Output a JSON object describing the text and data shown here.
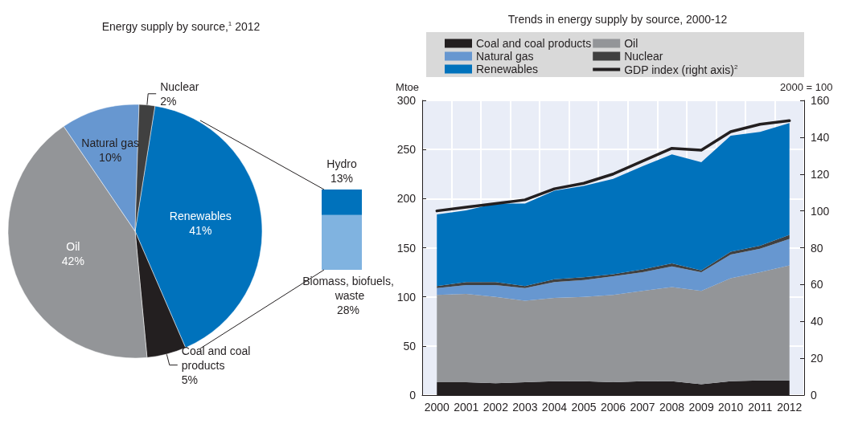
{
  "chart_data": [
    {
      "type": "pie",
      "title": "Energy supply by source,$^{1}$ 2012",
      "categories": [
        "Renewables",
        "Coal and coal products",
        "Oil",
        "Natural gas",
        "Nuclear"
      ],
      "values": [
        41,
        5,
        42,
        10,
        2
      ],
      "value_labels": [
        "41%",
        "5%",
        "42%",
        "10%",
        "2%"
      ],
      "colors": [
        "#0072bc",
        "#231f20",
        "#939598",
        "#6797d0",
        "#404040"
      ]
    },
    {
      "type": "bar",
      "stacked": true,
      "tick_labels": false,
      "categories": [
        null
      ],
      "series": [
        {
          "name": "Biomass, biofuels, waste",
          "color": "#80b3e0",
          "values": [
            28
          ],
          "value_labels": [
            "28%"
          ]
        },
        {
          "name": "Hydro",
          "color": "#0072bc",
          "values": [
            13
          ],
          "value_labels": [
            "13%"
          ]
        }
      ]
    },
    {
      "type": "area",
      "title": "Trends in energy supply by source, 2000-12",
      "ylabel": "Mtoe",
      "y2label": "2000 = 100",
      "categories": [
        "2000",
        "2001",
        "2002",
        "2003",
        "2004",
        "2005",
        "2006",
        "2007",
        "2008",
        "2009",
        "2010",
        "2011",
        "2012"
      ],
      "stacked": true,
      "grid": true,
      "legend": "top",
      "marker": "none",
      "ylim": [
        0,
        300
      ],
      "yticks": [
        0,
        50,
        100,
        150,
        200,
        250,
        300
      ],
      "y2lim": [
        0,
        160
      ],
      "y2ticks": [
        0,
        20,
        40,
        60,
        80,
        100,
        120,
        140,
        160
      ],
      "series": [
        {
          "name": "Coal and coal products",
          "color": "#231f20",
          "values": [
            13,
            13,
            12,
            13,
            14,
            14,
            13,
            14,
            14,
            11,
            14,
            15,
            15
          ]
        },
        {
          "name": "Oil",
          "color": "#939598",
          "values": [
            89,
            90,
            88,
            83,
            85,
            86,
            89,
            92,
            96,
            95,
            105,
            110,
            117
          ]
        },
        {
          "name": "Natural gas",
          "color": "#6797d0",
          "values": [
            7,
            9,
            12,
            13,
            16,
            17,
            19,
            19,
            21,
            19,
            24,
            24,
            27
          ]
        },
        {
          "name": "Nuclear",
          "color": "#404040",
          "values": [
            2,
            3,
            3,
            2,
            3,
            3,
            2,
            3,
            3,
            2,
            3,
            3,
            4
          ]
        },
        {
          "name": "Renewables",
          "color": "#0072bc",
          "values": [
            73,
            73,
            80,
            84,
            90,
            93,
            97,
            105,
            111,
            110,
            118,
            116,
            114
          ]
        },
        {
          "name": "GDP index (right axis)$^{2}$",
          "type": "line",
          "axis": "y2",
          "color": "#231f20",
          "values": [
            100,
            102,
            104,
            106,
            112,
            115,
            120,
            127,
            134,
            133,
            143,
            147,
            149
          ]
        }
      ]
    }
  ]
}
